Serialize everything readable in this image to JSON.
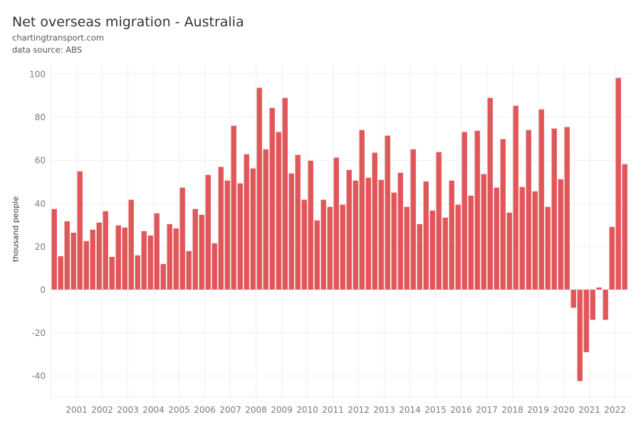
{
  "header": {
    "title": "Net overseas migration - Australia",
    "source_site": "chartingtransport.com",
    "data_source": "data source: ABS"
  },
  "chart_data": {
    "type": "bar",
    "title": "Net overseas migration - Australia",
    "xlabel": "",
    "ylabel": "thousand people",
    "ylim": [
      -50,
      100
    ],
    "yticks": [
      100,
      80,
      60,
      40,
      20,
      0,
      -20,
      -40
    ],
    "xticks": [
      "2001",
      "2002",
      "2003",
      "2004",
      "2005",
      "2006",
      "2007",
      "2008",
      "2009",
      "2010",
      "2011",
      "2012",
      "2013",
      "2014",
      "2015",
      "2016",
      "2017",
      "2018",
      "2019",
      "2020",
      "2021",
      "2022"
    ],
    "x_start_year": 2000,
    "periods_per_year": 4,
    "grid": true,
    "bar_color": "#E15759",
    "values": [
      37.4,
      15.5,
      31.7,
      26.4,
      54.9,
      22.5,
      27.8,
      31.1,
      36.4,
      15.2,
      29.8,
      28.8,
      41.7,
      15.9,
      27.1,
      25.1,
      35.4,
      11.9,
      30.4,
      28.4,
      47.3,
      17.9,
      37.4,
      34.7,
      53.2,
      21.5,
      56.9,
      50.6,
      76.0,
      49.3,
      62.8,
      56.2,
      93.6,
      65.1,
      84.3,
      73.1,
      88.9,
      53.9,
      62.5,
      41.7,
      59.8,
      32.1,
      41.7,
      38.4,
      61.2,
      39.4,
      55.5,
      50.6,
      74.0,
      51.9,
      63.5,
      50.9,
      71.4,
      45.0,
      54.2,
      38.4,
      65.1,
      30.4,
      50.2,
      36.7,
      63.8,
      33.4,
      50.6,
      39.4,
      73.1,
      43.6,
      73.7,
      53.6,
      88.9,
      47.3,
      69.8,
      35.7,
      85.3,
      47.6,
      74.0,
      45.6,
      83.6,
      38.4,
      74.7,
      51.2,
      75.4,
      -8.4,
      -42.4,
      -29.0,
      -14.0,
      1.0,
      -14.0,
      29.1,
      98.2,
      58.2
    ]
  }
}
